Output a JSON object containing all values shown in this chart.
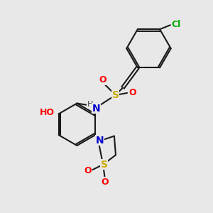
{
  "bg_color": "#e8e8e8",
  "bond_color": "#1a1a1a",
  "N_color": "#0000cc",
  "O_color": "#ff0000",
  "S_color": "#ccaa00",
  "Cl_color": "#00aa00",
  "H_color": "#444444",
  "fig_size": [
    3.0,
    3.0
  ],
  "dpi": 100,
  "xlim": [
    0,
    10
  ],
  "ylim": [
    0,
    10
  ]
}
